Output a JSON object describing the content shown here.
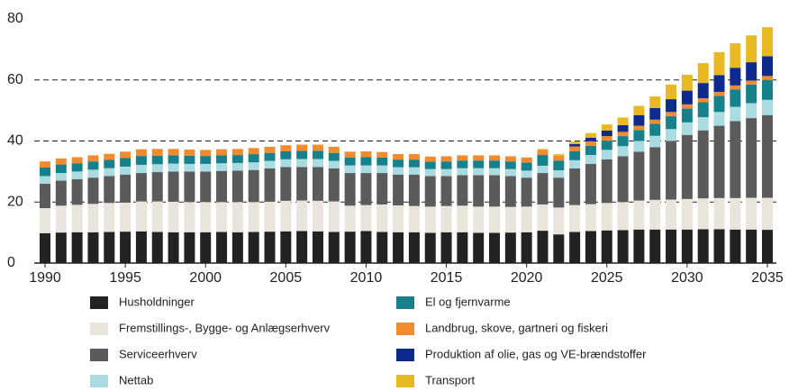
{
  "chart_data": {
    "type": "stacked_bar",
    "x": [
      1990,
      1991,
      1992,
      1993,
      1994,
      1995,
      1996,
      1997,
      1998,
      1999,
      2000,
      2001,
      2002,
      2003,
      2004,
      2005,
      2006,
      2007,
      2008,
      2009,
      2010,
      2011,
      2012,
      2013,
      2014,
      2015,
      2016,
      2017,
      2018,
      2019,
      2020,
      2021,
      2022,
      2023,
      2024,
      2025,
      2026,
      2027,
      2028,
      2029,
      2030,
      2031,
      2032,
      2033,
      2034,
      2035
    ],
    "xlim": [
      1990,
      2035
    ],
    "xticks": [
      1990,
      1995,
      2000,
      2005,
      2010,
      2015,
      2020,
      2025,
      2030,
      2035
    ],
    "ylim": [
      0,
      80
    ],
    "yticks": [
      0,
      20,
      40,
      60,
      80
    ],
    "grid": true,
    "series": [
      {
        "name": "Husholdninger",
        "color": "#222222",
        "values": [
          9.8,
          10,
          10.1,
          10.1,
          10.2,
          10.3,
          10.4,
          10.2,
          10.1,
          10.1,
          10.1,
          10.2,
          10.1,
          10.2,
          10.3,
          10.4,
          10.5,
          10.4,
          10.2,
          10.3,
          10.5,
          10.2,
          10.1,
          10.1,
          9.9,
          10.1,
          10.1,
          9.9,
          9.9,
          10,
          10.1,
          10.6,
          9.4,
          10.2,
          10.5,
          10.7,
          10.8,
          11,
          11,
          11,
          11,
          11.1,
          11.1,
          11,
          11,
          10.9
        ]
      },
      {
        "name": "Fremstillings-, Bygge- og Anlægserhverv",
        "color": "#e9e5dd",
        "values": [
          8.2,
          8.8,
          9,
          9.3,
          9.5,
          9.5,
          9.8,
          10,
          10,
          9.9,
          9.9,
          9.8,
          9.9,
          9.8,
          9.8,
          10,
          10,
          10,
          10,
          8.5,
          8.5,
          9,
          8.8,
          8.6,
          8.6,
          8.6,
          8.7,
          8.6,
          8.6,
          8.4,
          8.4,
          8.6,
          8.8,
          8.8,
          8.8,
          9,
          9.2,
          9.5,
          9.7,
          9.8,
          10,
          10.1,
          10.2,
          10.3,
          10.4,
          10.5
        ]
      },
      {
        "name": "Serviceerhverv",
        "color": "#5b5b5b",
        "values": [
          8,
          8.2,
          8.4,
          8.6,
          8.8,
          9.2,
          9.3,
          9.6,
          9.9,
          10,
          10,
          10.2,
          10.3,
          10.5,
          10.9,
          11.1,
          11,
          11.1,
          10.8,
          10.7,
          10.5,
          10.3,
          10.1,
          10.3,
          10,
          9.8,
          10,
          10.3,
          10.3,
          10.1,
          9.5,
          10.3,
          9.8,
          12,
          13.2,
          14.3,
          15,
          16,
          17.3,
          19.2,
          21,
          22.3,
          23.7,
          25.2,
          26.1,
          27.1
        ]
      },
      {
        "name": "Nettab",
        "color": "#a9dbe0",
        "values": [
          2.5,
          2.5,
          2.5,
          2.6,
          2.6,
          2.6,
          2.7,
          2.6,
          2.6,
          2.5,
          2.5,
          2.5,
          2.5,
          2.5,
          2.5,
          2.5,
          2.6,
          2.6,
          2.5,
          2.5,
          2.5,
          2.5,
          2.4,
          2.4,
          2.3,
          2.3,
          2.3,
          2.3,
          2.3,
          2.3,
          2.3,
          2.4,
          2.4,
          2.7,
          2.9,
          3.1,
          3.3,
          3.5,
          3.7,
          3.9,
          4.1,
          4.3,
          4.5,
          4.7,
          4.9,
          5
        ]
      },
      {
        "name": "El og fjernvarme",
        "color": "#16808b",
        "values": [
          2.8,
          2.8,
          2.7,
          2.7,
          2.7,
          2.8,
          2.9,
          2.8,
          2.7,
          2.7,
          2.6,
          2.6,
          2.6,
          2.7,
          2.6,
          2.6,
          2.7,
          2.7,
          2.6,
          2.6,
          2.7,
          2.6,
          2.5,
          2.5,
          2.4,
          2.5,
          2.5,
          2.5,
          2.5,
          2.5,
          2.6,
          3.5,
          3.2,
          3,
          3,
          3,
          3.3,
          3.6,
          3.9,
          4.2,
          4.5,
          4.9,
          5.3,
          5.7,
          6.1,
          6.5
        ]
      },
      {
        "name": "Landbrug, skove, gartneri og fiskeri",
        "color": "#f28a30",
        "values": [
          2,
          2,
          2,
          2,
          2,
          2.1,
          2.2,
          2.2,
          2.1,
          2,
          2,
          2,
          2,
          2,
          2,
          2,
          2,
          2,
          2,
          1.9,
          1.9,
          1.8,
          1.8,
          1.8,
          1.7,
          1.7,
          1.7,
          1.7,
          1.7,
          1.7,
          1.7,
          1.7,
          1.6,
          1.5,
          1.5,
          1.5,
          1.4,
          1.4,
          1.4,
          1.4,
          1.4,
          1.3,
          1.3,
          1.3,
          1.3,
          1.3
        ]
      },
      {
        "name": "Produktion af olie, gas og VE-brændstoffer",
        "color": "#0e2a8c",
        "values": [
          0,
          0,
          0,
          0,
          0,
          0,
          0,
          0,
          0,
          0,
          0,
          0,
          0,
          0,
          0,
          0,
          0,
          0,
          0,
          0,
          0,
          0,
          0,
          0,
          0,
          0,
          0,
          0,
          0,
          0,
          0,
          0,
          0,
          0.8,
          1.2,
          1.8,
          2.2,
          3.5,
          3.8,
          4.2,
          4.5,
          5,
          5.5,
          5.8,
          6,
          6.5
        ]
      },
      {
        "name": "Transport",
        "color": "#e8b923",
        "values": [
          0,
          0,
          0,
          0,
          0,
          0,
          0,
          0,
          0,
          0,
          0,
          0,
          0,
          0,
          0,
          0,
          0,
          0,
          0,
          0,
          0,
          0,
          0,
          0,
          0,
          0,
          0,
          0,
          0,
          0,
          0,
          0.3,
          0.5,
          0.8,
          1.5,
          2,
          2.5,
          3,
          3.8,
          4.8,
          5.2,
          6.5,
          7.5,
          8,
          8.8,
          9.5
        ]
      }
    ]
  }
}
